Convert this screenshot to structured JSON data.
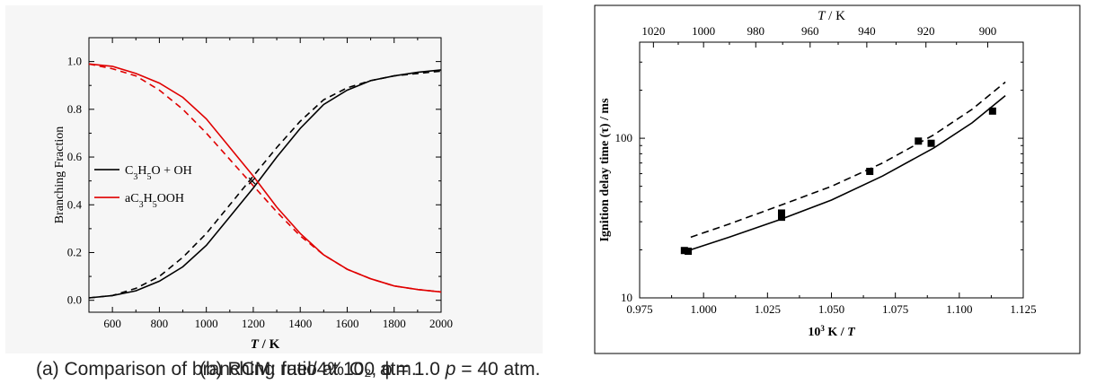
{
  "captions": {
    "a": "(a) Comparison of branching ratio at 100 atm.",
    "b_pre": "(b) RCM: fuel/4% O₂, ϕ = 1.0 ",
    "b_p": "p",
    "b_post": " = 40 atm."
  },
  "chart_data": [
    {
      "type": "line",
      "xlabel_italic": "T",
      "xlabel_rest": " /  K",
      "ylabel": "Branching Fraction",
      "xlim": [
        500,
        2000
      ],
      "ylim": [
        -0.05,
        1.1
      ],
      "xticks": [
        600,
        800,
        1000,
        1200,
        1400,
        1600,
        1800,
        2000
      ],
      "yticks": [
        0.0,
        0.2,
        0.4,
        0.6,
        0.8,
        1.0
      ],
      "ytick_labels": [
        "0.0",
        "0.2",
        "0.4",
        "0.6",
        "0.8",
        "1.0"
      ],
      "legend": {
        "position": "center-left",
        "entries": [
          {
            "label_parts": [
              "C",
              "3",
              "H",
              "5",
              "O + OH"
            ],
            "color": "#000000"
          },
          {
            "label_parts": [
              "aC",
              "3",
              "H",
              "5",
              "OOH"
            ],
            "color": "#e00000"
          }
        ]
      },
      "series": [
        {
          "color": "#000000",
          "dash": "solid",
          "x": [
            500,
            600,
            700,
            800,
            900,
            1000,
            1100,
            1200,
            1300,
            1400,
            1500,
            1600,
            1700,
            1800,
            1900,
            2000
          ],
          "y": [
            0.01,
            0.02,
            0.04,
            0.08,
            0.14,
            0.23,
            0.35,
            0.47,
            0.6,
            0.72,
            0.82,
            0.88,
            0.92,
            0.94,
            0.955,
            0.965
          ]
        },
        {
          "color": "#000000",
          "dash": "dashed",
          "x": [
            500,
            600,
            700,
            800,
            900,
            1000,
            1100,
            1200,
            1300,
            1400,
            1500,
            1600,
            1700,
            1800,
            1900,
            2000
          ],
          "y": [
            0.01,
            0.02,
            0.05,
            0.1,
            0.18,
            0.28,
            0.4,
            0.52,
            0.64,
            0.75,
            0.84,
            0.89,
            0.92,
            0.94,
            0.95,
            0.96
          ]
        },
        {
          "color": "#e00000",
          "dash": "solid",
          "x": [
            500,
            600,
            700,
            800,
            900,
            1000,
            1100,
            1200,
            1300,
            1400,
            1500,
            1600,
            1700,
            1800,
            1900,
            2000
          ],
          "y": [
            0.99,
            0.98,
            0.95,
            0.91,
            0.85,
            0.76,
            0.64,
            0.52,
            0.39,
            0.28,
            0.19,
            0.13,
            0.09,
            0.06,
            0.045,
            0.035
          ]
        },
        {
          "color": "#e00000",
          "dash": "dashed",
          "x": [
            500,
            600,
            700,
            800,
            900,
            1000,
            1100,
            1200,
            1300,
            1400,
            1500,
            1600,
            1700,
            1800,
            1900,
            2000
          ],
          "y": [
            0.99,
            0.97,
            0.94,
            0.88,
            0.8,
            0.7,
            0.59,
            0.48,
            0.37,
            0.27,
            0.19,
            0.13,
            0.09,
            0.06,
            0.045,
            0.035
          ]
        }
      ],
      "annotations": [
        {
          "type": "cross",
          "x": 1195,
          "y": 0.5,
          "color": "#000000"
        }
      ]
    },
    {
      "type": "line",
      "xlabel_sup_base": "10",
      "xlabel_sup": "3",
      "xlabel_mid": " K / ",
      "xlabel_italic": "T",
      "ylabel_parts": [
        "Ignition delay time (",
        "τ",
        ") / ms"
      ],
      "top_xlabel_italic": "T",
      "top_xlabel_rest": " / K",
      "xlim": [
        0.975,
        1.125
      ],
      "ylim": [
        10,
        400
      ],
      "yscale": "log",
      "xticks": [
        0.975,
        1.0,
        1.025,
        1.05,
        1.075,
        1.1,
        1.125
      ],
      "xtick_labels": [
        "0.975",
        "1.000",
        "1.025",
        "1.050",
        "1.075",
        "1.100",
        "1.125"
      ],
      "yticks": [
        10,
        100
      ],
      "ytick_labels": [
        "10",
        "100"
      ],
      "top_xticks": [
        1020,
        1000,
        980,
        960,
        940,
        920,
        900
      ],
      "top_xtick_labels": [
        "1020",
        "1000",
        "980",
        "960",
        "940",
        "920",
        "900"
      ],
      "series": [
        {
          "type": "scatter",
          "marker": "square",
          "x": [
            0.9925,
            0.994,
            1.0305,
            1.0305,
            1.065,
            1.084,
            1.089,
            1.113
          ],
          "y": [
            19.8,
            19.6,
            34,
            32,
            62,
            96,
            93,
            148
          ]
        },
        {
          "type": "line",
          "dash": "solid",
          "x": [
            0.995,
            1.01,
            1.03,
            1.05,
            1.07,
            1.09,
            1.105,
            1.118
          ],
          "y": [
            20,
            24,
            31,
            41,
            58,
            87,
            125,
            185
          ]
        },
        {
          "type": "line",
          "dash": "dashed",
          "x": [
            0.995,
            1.01,
            1.03,
            1.05,
            1.07,
            1.09,
            1.105,
            1.118
          ],
          "y": [
            24,
            29,
            38,
            50,
            70,
            105,
            152,
            225
          ]
        }
      ]
    }
  ]
}
